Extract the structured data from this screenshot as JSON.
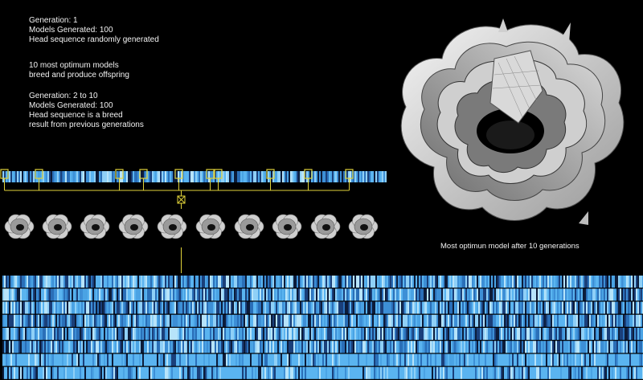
{
  "text": {
    "gen1": [
      "Generation: 1",
      "Models Generated: 100",
      "Head sequence randomly generated"
    ],
    "breed": [
      "10 most optimum models",
      "breed and produce offspring"
    ],
    "gen2": [
      "Generation: 2 to 10",
      "Models Generated: 100",
      "Head sequence is a breed",
      "result from previous generations"
    ],
    "caption": "Most optimun model  after 10 generations"
  },
  "colors": {
    "background": "#000000",
    "text": "#f2f2f2",
    "selector": "#e0d23a",
    "sequence_palette": [
      "#5ab4f0",
      "#3d8fd6",
      "#2a6fb8",
      "#8fd0f7",
      "#1a3f7a",
      "#0c1c3a",
      "#b7e4fa",
      "#4aa3e4"
    ]
  },
  "diagram": {
    "selected_count": 10,
    "model_count": 10,
    "sequence_rows": 8
  },
  "icons": {
    "selector": "yellow-box-icon",
    "breed": "cross-box-icon",
    "model": "flower-model-icon"
  }
}
